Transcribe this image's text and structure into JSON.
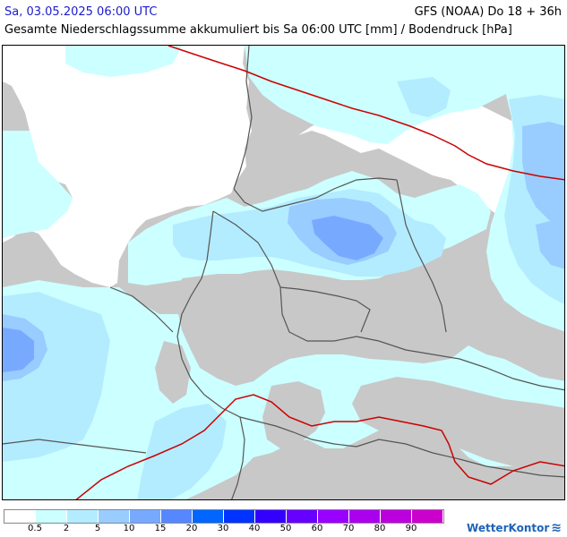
{
  "header": {
    "datetime": "Sa, 03.05.2025 06:00 UTC",
    "model": "GFS (NOAA) Do 18 + 36h",
    "subtitle": "Gesamte Niederschlagssumme akkumuliert bis Sa 06:00 UTC [mm] / Bodendruck [hPa]"
  },
  "legend": {
    "colors": [
      "#ffffff",
      "#ccffff",
      "#b3ecff",
      "#99ccff",
      "#77aaff",
      "#5588ff",
      "#0066ff",
      "#0033ff",
      "#3300ff",
      "#6600ff",
      "#9900ff",
      "#aa00ee",
      "#bb00dd",
      "#cc00cc"
    ],
    "labels": [
      "0.5",
      "2",
      "5",
      "10",
      "15",
      "20",
      "30",
      "40",
      "50",
      "60",
      "70",
      "80",
      "90"
    ]
  },
  "brand": {
    "name": "WetterKontor"
  },
  "map_layers": {
    "sea_color": "#ffffff",
    "dry_land_color": "#c8c8c8",
    "light_precip_color": "#ccffff",
    "moderate_precip_color": "#b3ecff",
    "heavy_precip_color": "#77aaff",
    "isobar_color": "#cc0000",
    "border_color": "#555555"
  }
}
